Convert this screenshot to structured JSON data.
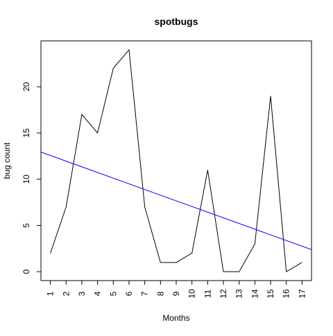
{
  "chart_data": {
    "type": "line",
    "title": "spotbugs",
    "xlabel": "Months",
    "ylabel": "bug count",
    "x": [
      1,
      2,
      3,
      4,
      5,
      6,
      7,
      8,
      9,
      10,
      11,
      12,
      13,
      14,
      15,
      16,
      17
    ],
    "x_ticks": [
      "1",
      "2",
      "3",
      "4",
      "5",
      "6",
      "7",
      "8",
      "9",
      "10",
      "11",
      "12",
      "13",
      "14",
      "15",
      "16",
      "17"
    ],
    "y_ticks": [
      "0",
      "5",
      "10",
      "15",
      "20"
    ],
    "xlim": [
      0.4,
      17.6
    ],
    "ylim": [
      -0.96,
      24.96
    ],
    "grid": false,
    "legend": "none",
    "series": [
      {
        "values": [
          2,
          7,
          17,
          15,
          22,
          24,
          7,
          1,
          1,
          2,
          11,
          0,
          0,
          3,
          19,
          0,
          1
        ],
        "color": "#000000"
      }
    ],
    "trend_line": {
      "intercept": 13.18,
      "slope": -0.613,
      "color": "#0000ff"
    }
  }
}
